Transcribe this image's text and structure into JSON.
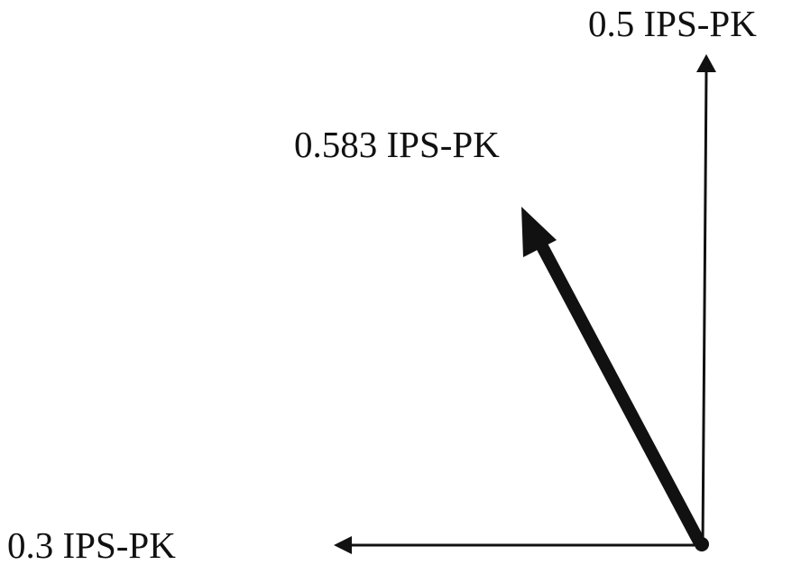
{
  "diagram": {
    "title": "",
    "unit": "IPS-PK",
    "colors": {
      "ink": "#111111",
      "background": "#ffffff"
    },
    "vectors": [
      {
        "id": "vertical",
        "magnitude": 0.5,
        "direction": "up",
        "label": "0.5 IPS-PK",
        "style": "thin"
      },
      {
        "id": "resultant",
        "magnitude": 0.583,
        "direction": "up-left",
        "label": "0.583 IPS-PK",
        "style": "thick"
      },
      {
        "id": "horizontal",
        "magnitude": 0.3,
        "direction": "left",
        "label": "0.3 IPS-PK",
        "style": "thin"
      }
    ]
  }
}
